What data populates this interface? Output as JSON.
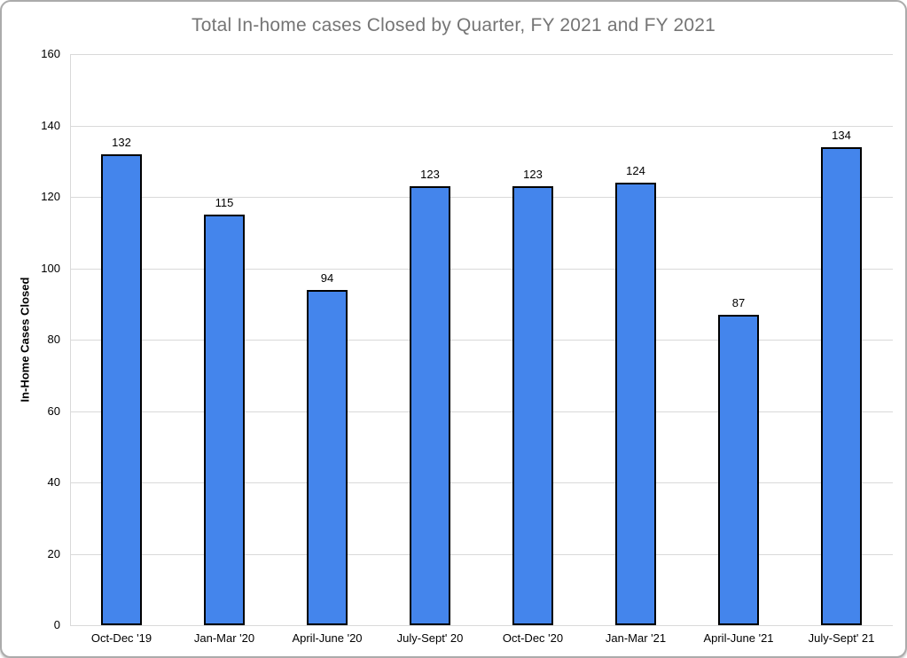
{
  "window": {
    "background": "#ffffff",
    "border_color": "#ababab"
  },
  "chart_data": {
    "type": "bar",
    "title": "Total In-home cases Closed by Quarter, FY 2021 and FY 2021",
    "categories": [
      "Oct-Dec '19",
      "Jan-Mar '20",
      "April-June '20",
      "July-Sept' 20",
      "Oct-Dec '20",
      "Jan-Mar '21",
      "April-June '21",
      "July-Sept' 21"
    ],
    "values": [
      132,
      115,
      94,
      123,
      123,
      124,
      87,
      134
    ],
    "xlabel": "",
    "ylabel": "In-Home Cases Closed",
    "ylim": [
      0,
      160
    ],
    "yticks": [
      0,
      20,
      40,
      60,
      80,
      100,
      120,
      140,
      160
    ],
    "grid": "horizontal",
    "legend": "none",
    "data_labels": "above-bars",
    "colors": {
      "bar_fill": "#4485ec",
      "bar_border": "#000000",
      "gridline": "#d9d9d9",
      "axis_line": "#d9d9d9",
      "title_text": "#757575",
      "axis_text": "#000000"
    }
  }
}
